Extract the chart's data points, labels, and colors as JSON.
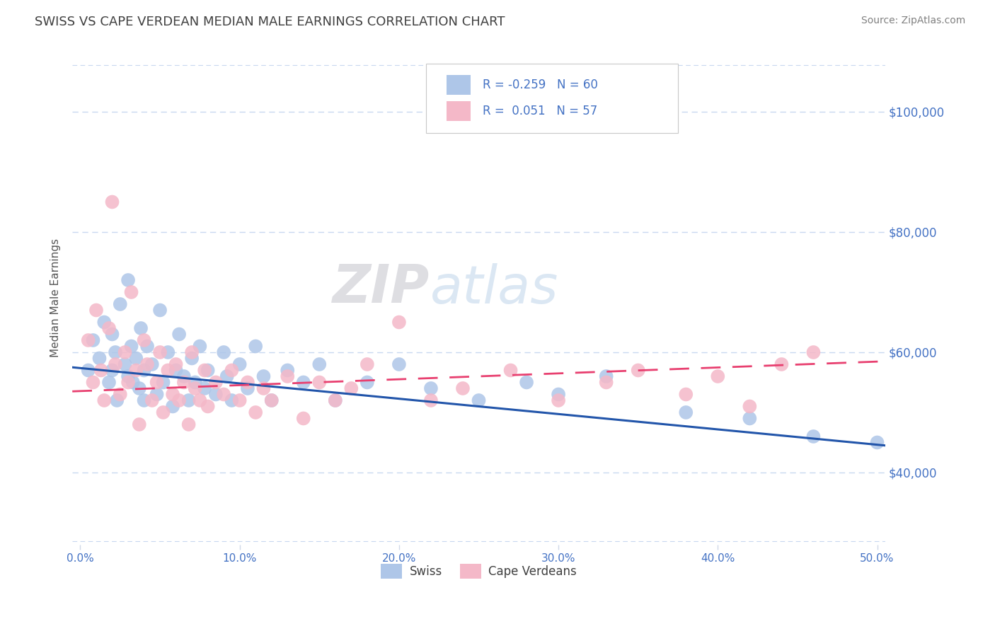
{
  "title": "SWISS VS CAPE VERDEAN MEDIAN MALE EARNINGS CORRELATION CHART",
  "source_text": "Source: ZipAtlas.com",
  "ylabel": "Median Male Earnings",
  "xlim": [
    -0.005,
    0.505
  ],
  "ylim": [
    28000,
    110000
  ],
  "yticks": [
    40000,
    60000,
    80000,
    100000
  ],
  "ytick_labels": [
    "$40,000",
    "$60,000",
    "$80,000",
    "$100,000"
  ],
  "xticks": [
    0.0,
    0.1,
    0.2,
    0.3,
    0.4,
    0.5
  ],
  "xtick_labels": [
    "0.0%",
    "10.0%",
    "20.0%",
    "30.0%",
    "40.0%",
    "50.0%"
  ],
  "swiss_color": "#aec6e8",
  "cape_color": "#f4b8c8",
  "swiss_line_color": "#2255aa",
  "cape_line_color": "#e84070",
  "legend_label1": "Swiss",
  "legend_label2": "Cape Verdeans",
  "watermark_zip": "ZIP",
  "watermark_atlas": "atlas",
  "background_color": "#ffffff",
  "grid_color": "#c8d8f0",
  "axis_color": "#4472c4",
  "title_color": "#404040",
  "source_color": "#808080",
  "swiss_x": [
    0.005,
    0.008,
    0.012,
    0.015,
    0.018,
    0.02,
    0.02,
    0.022,
    0.023,
    0.025,
    0.028,
    0.03,
    0.03,
    0.032,
    0.033,
    0.035,
    0.037,
    0.038,
    0.04,
    0.04,
    0.042,
    0.045,
    0.048,
    0.05,
    0.052,
    0.055,
    0.058,
    0.06,
    0.062,
    0.065,
    0.068,
    0.07,
    0.072,
    0.075,
    0.078,
    0.08,
    0.085,
    0.09,
    0.092,
    0.095,
    0.1,
    0.105,
    0.11,
    0.115,
    0.12,
    0.13,
    0.14,
    0.15,
    0.16,
    0.18,
    0.2,
    0.22,
    0.25,
    0.28,
    0.3,
    0.33,
    0.38,
    0.42,
    0.46,
    0.5
  ],
  "swiss_y": [
    57000,
    62000,
    59000,
    65000,
    55000,
    63000,
    57000,
    60000,
    52000,
    68000,
    58000,
    56000,
    72000,
    61000,
    55000,
    59000,
    54000,
    64000,
    57000,
    52000,
    61000,
    58000,
    53000,
    67000,
    55000,
    60000,
    51000,
    57000,
    63000,
    56000,
    52000,
    59000,
    55000,
    61000,
    54000,
    57000,
    53000,
    60000,
    56000,
    52000,
    58000,
    54000,
    61000,
    56000,
    52000,
    57000,
    55000,
    58000,
    52000,
    55000,
    58000,
    54000,
    52000,
    55000,
    53000,
    56000,
    50000,
    49000,
    46000,
    45000
  ],
  "cape_x": [
    0.005,
    0.008,
    0.01,
    0.013,
    0.015,
    0.018,
    0.02,
    0.022,
    0.025,
    0.028,
    0.03,
    0.032,
    0.035,
    0.037,
    0.04,
    0.042,
    0.045,
    0.048,
    0.05,
    0.052,
    0.055,
    0.058,
    0.06,
    0.062,
    0.065,
    0.068,
    0.07,
    0.072,
    0.075,
    0.078,
    0.08,
    0.085,
    0.09,
    0.095,
    0.1,
    0.105,
    0.11,
    0.115,
    0.12,
    0.13,
    0.14,
    0.15,
    0.16,
    0.17,
    0.18,
    0.2,
    0.22,
    0.24,
    0.27,
    0.3,
    0.33,
    0.35,
    0.38,
    0.4,
    0.42,
    0.44,
    0.46
  ],
  "cape_y": [
    62000,
    55000,
    67000,
    57000,
    52000,
    64000,
    85000,
    58000,
    53000,
    60000,
    55000,
    70000,
    57000,
    48000,
    62000,
    58000,
    52000,
    55000,
    60000,
    50000,
    57000,
    53000,
    58000,
    52000,
    55000,
    48000,
    60000,
    54000,
    52000,
    57000,
    51000,
    55000,
    53000,
    57000,
    52000,
    55000,
    50000,
    54000,
    52000,
    56000,
    49000,
    55000,
    52000,
    54000,
    58000,
    65000,
    52000,
    54000,
    57000,
    52000,
    55000,
    57000,
    53000,
    56000,
    51000,
    58000,
    60000
  ],
  "swiss_reg": [
    57500,
    44500
  ],
  "cape_reg": [
    53500,
    58500
  ]
}
